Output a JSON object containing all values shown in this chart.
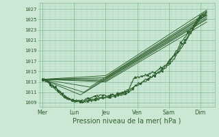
{
  "bg_color": "#cce8d4",
  "grid_color_major": "#88bb99",
  "grid_color_minor": "#aad4bb",
  "line_color": "#2d5e2d",
  "xlabel": "Pression niveau de la mer( hPa )",
  "xlabel_fontsize": 7.0,
  "yticks": [
    1009,
    1011,
    1013,
    1015,
    1017,
    1019,
    1021,
    1023,
    1025,
    1027
  ],
  "xtick_labels": [
    "Mer",
    "Lun",
    "Jeu",
    "Ven",
    "Sam",
    "Dim"
  ],
  "xtick_positions": [
    0,
    1,
    2,
    3,
    4,
    5
  ],
  "ylim": [
    1008.2,
    1028.2
  ],
  "xlim": [
    -0.1,
    5.45
  ]
}
